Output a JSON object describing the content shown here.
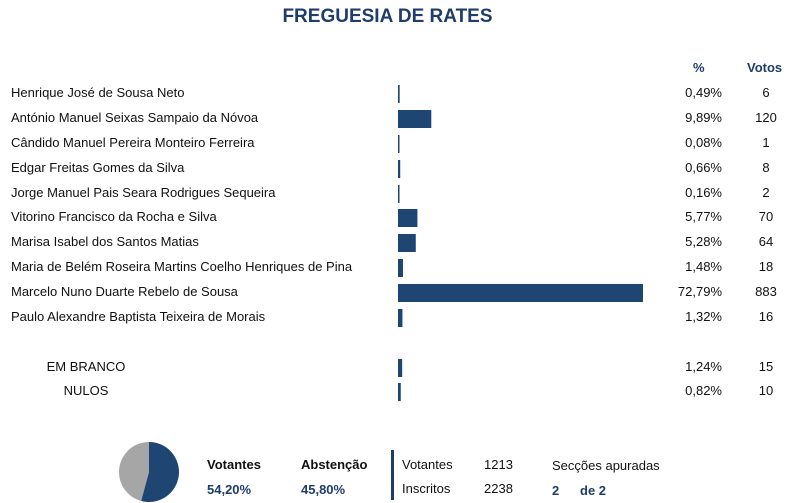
{
  "title": "FREGUESIA DE RATES",
  "headers": {
    "pct": "%",
    "votes": "Votos"
  },
  "colors": {
    "bar": "#1f4573",
    "accent": "#1f3d6b",
    "pie_gray": "#a6a6a6"
  },
  "chart_data": {
    "type": "bar",
    "orientation": "horizontal",
    "categories": [
      "Henrique José de Sousa Neto",
      "António Manuel Seixas Sampaio da Nóvoa",
      "Cândido Manuel Pereira Monteiro Ferreira",
      "Edgar Freitas Gomes da Silva",
      "Jorge Manuel Pais Seara Rodrigues Sequeira",
      "Vitorino Francisco da Rocha e Silva",
      "Marisa Isabel dos Santos Matias",
      "Maria de Belém Roseira Martins Coelho Henriques de Pina",
      "Marcelo Nuno Duarte Rebelo de Sousa",
      "Paulo Alexandre Baptista Teixeira de Morais",
      "EM BRANCO",
      "NULOS"
    ],
    "values": [
      0.49,
      9.89,
      0.08,
      0.66,
      0.16,
      5.77,
      5.28,
      1.48,
      72.79,
      1.32,
      1.24,
      0.82
    ],
    "pct_labels": [
      "0,49%",
      "9,89%",
      "0,08%",
      "0,66%",
      "0,16%",
      "5,77%",
      "5,28%",
      "1,48%",
      "72,79%",
      "1,32%",
      "1,24%",
      "0,82%"
    ],
    "votes": [
      6,
      120,
      1,
      8,
      2,
      70,
      64,
      18,
      883,
      16,
      15,
      10
    ]
  },
  "pie": {
    "votantes_fraction": 0.542,
    "abstencao_fraction": 0.458
  },
  "summary": {
    "votantes_label": "Votantes",
    "votantes_pct": "54,20%",
    "abstencao_label": "Abstenção",
    "abstencao_pct": "45,80%",
    "votantes_count_label": "Votantes",
    "votantes_count": "1213",
    "inscritos_label": "Inscritos",
    "inscritos_count": "2238",
    "seccoes_label": "Secções apuradas",
    "seccoes_done": "2",
    "seccoes_total": "de 2"
  }
}
